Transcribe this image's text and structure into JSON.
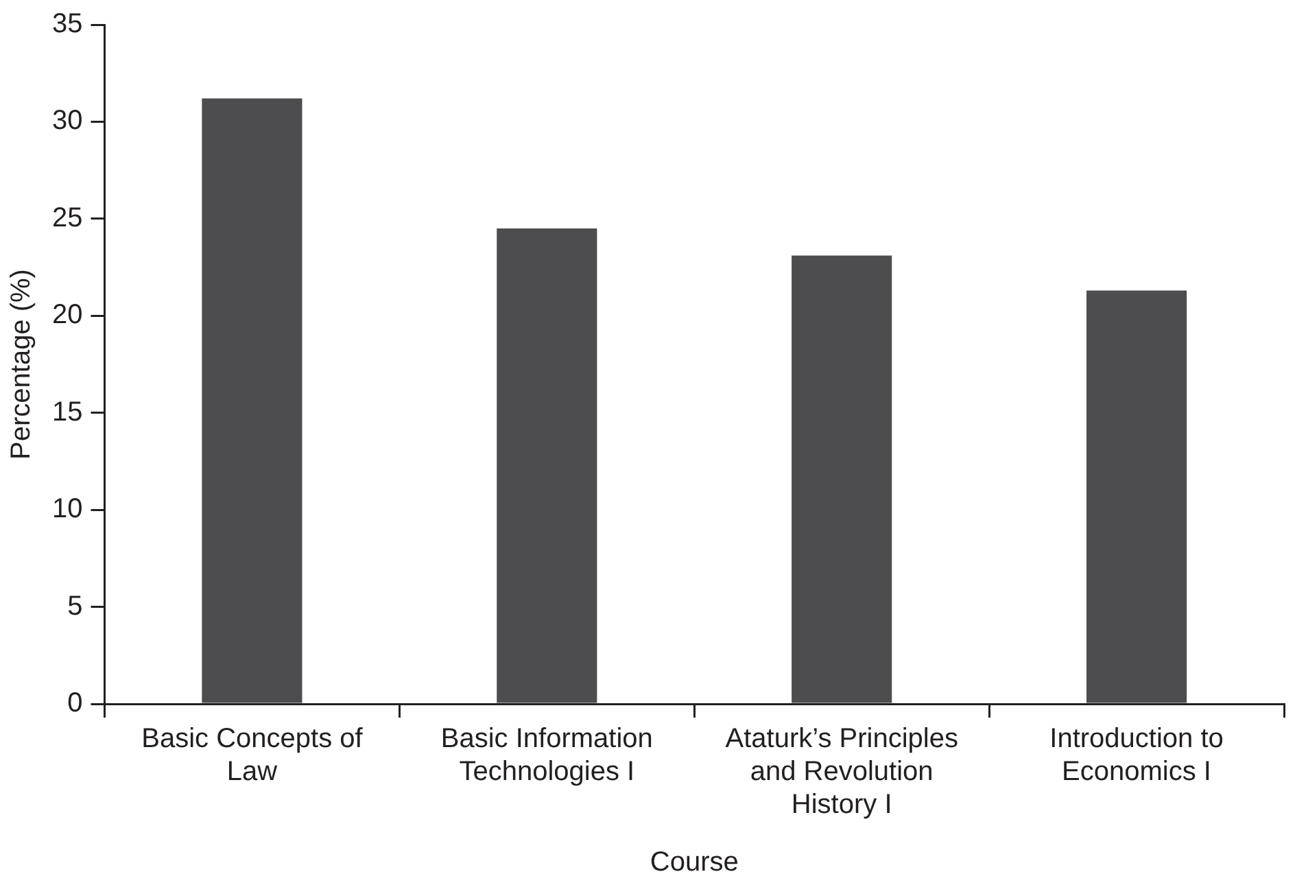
{
  "chart_data": {
    "type": "bar",
    "categories": [
      "Basic Concepts of Law",
      "Basic Information Technologies I",
      "Ataturk’s Principles and Revolution History I",
      "Introduction to Economics I"
    ],
    "values": [
      31.2,
      24.5,
      23.1,
      21.3
    ],
    "color": "#4d4d4f",
    "xlabel": "Course",
    "ylabel": "Percentage (%)",
    "ylim": [
      0,
      35
    ],
    "yticks": [
      0,
      5,
      10,
      15,
      20,
      25,
      30,
      35
    ],
    "grid": false,
    "legend": false
  }
}
